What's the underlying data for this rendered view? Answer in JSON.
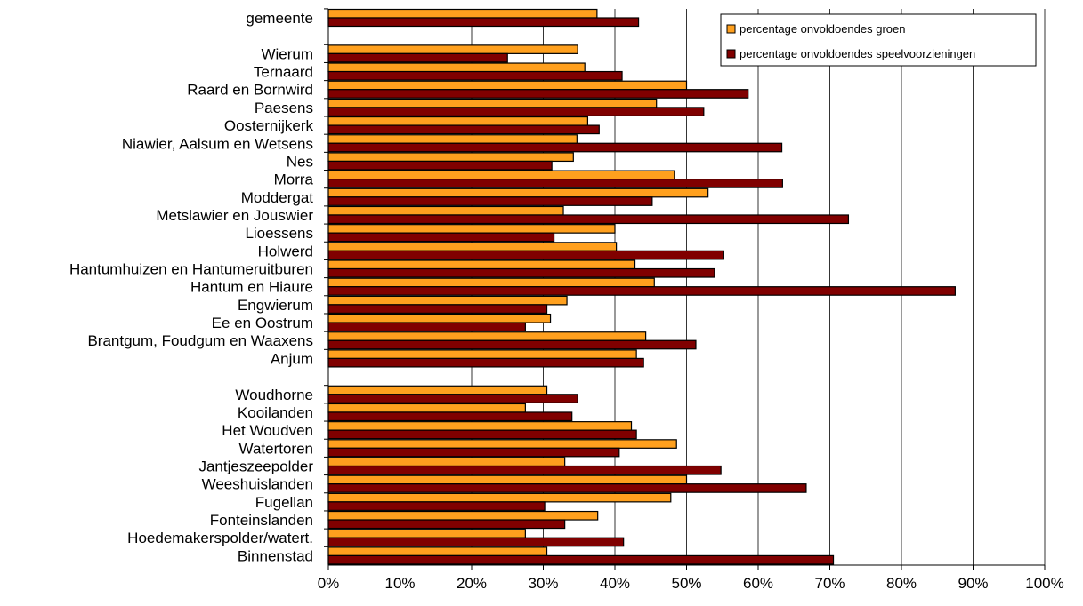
{
  "chart_data": {
    "type": "bar",
    "orientation": "horizontal",
    "title": "",
    "xlabel": "",
    "ylabel": "",
    "xlim": [
      0,
      100
    ],
    "x_ticks": [
      "0%",
      "10%",
      "20%",
      "30%",
      "40%",
      "50%",
      "60%",
      "70%",
      "80%",
      "90%",
      "100%"
    ],
    "grid": "vertical",
    "legend_position": "top-right",
    "categories": [
      "gemeente",
      "Wierum",
      "Ternaard",
      "Raard en Bornwird",
      "Paesens",
      "Oosternijkerk",
      "Niawier, Aalsum en Wetsens",
      "Nes",
      "Morra",
      "Moddergat",
      "Metslawier en Jouswier",
      "Lioessens",
      "Holwerd",
      "Hantumhuizen en Hantumeruitburen",
      "Hantum en Hiaure",
      "Engwierum",
      "Ee en Oostrum",
      "Brantgum, Foudgum en Waaxens",
      "Anjum",
      "Woudhorne",
      "Kooilanden",
      "Het Woudven",
      "Watertoren",
      "Jantjeszeepolder",
      "Weeshuislanden",
      "Fugellan",
      "Fonteinslanden",
      "Hoedemakerspolder/watert.",
      "Binnenstad"
    ],
    "series": [
      {
        "name": "percentage onvoldoendes groen",
        "color": "#FFA01E",
        "values": [
          37.5,
          34.8,
          35.8,
          50.0,
          45.8,
          36.2,
          34.7,
          34.2,
          48.3,
          53.0,
          32.8,
          40.0,
          40.2,
          42.8,
          45.5,
          33.3,
          31.0,
          44.3,
          43.0,
          30.5,
          27.5,
          42.3,
          48.6,
          33.0,
          50.0,
          47.8,
          37.6,
          27.5,
          30.5
        ]
      },
      {
        "name": "percentage onvoldoendes speelvoorzieningen",
        "color": "#800000",
        "values": [
          43.3,
          25.0,
          41.0,
          58.6,
          52.4,
          37.8,
          63.3,
          31.2,
          63.4,
          45.2,
          72.6,
          31.5,
          55.2,
          53.9,
          87.5,
          30.5,
          27.5,
          51.3,
          44.0,
          34.8,
          34.0,
          43.0,
          40.6,
          54.8,
          66.7,
          30.2,
          33.0,
          41.2,
          70.5
        ]
      }
    ]
  }
}
